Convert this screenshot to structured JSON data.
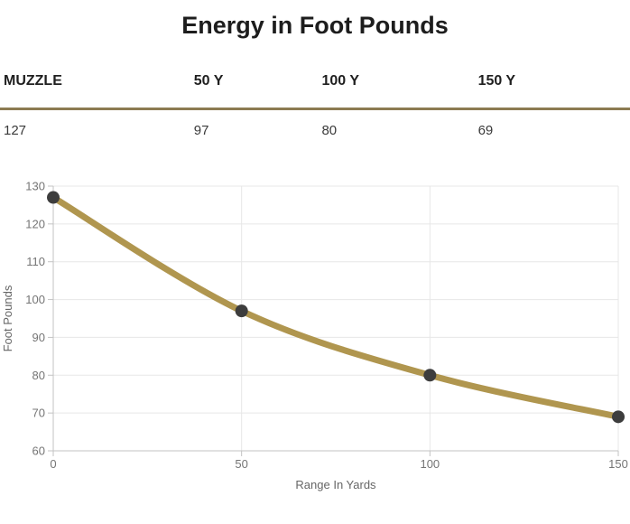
{
  "title": "Energy in Foot Pounds",
  "table": {
    "headers": [
      "MUZZLE",
      "50 Y",
      "100 Y",
      "150 Y"
    ],
    "values": [
      "127",
      "97",
      "80",
      "69"
    ]
  },
  "chart_data": {
    "type": "line",
    "x": [
      0,
      50,
      100,
      150
    ],
    "values": [
      127,
      97,
      80,
      69
    ],
    "title": "",
    "xlabel": "Range In Yards",
    "ylabel": "Foot Pounds",
    "xlim": [
      0,
      150
    ],
    "ylim": [
      60,
      130
    ],
    "xticks": [
      0,
      50,
      100,
      150
    ],
    "yticks": [
      60,
      70,
      80,
      90,
      100,
      110,
      120,
      130
    ],
    "grid": true,
    "legend": "none",
    "line_color": "#b0964f",
    "marker_color": "#3d3d3d"
  },
  "colors": {
    "divider": "#8c7b52",
    "grid_line": "#e7e7e7",
    "axis_line": "#c3c3c3",
    "tick_text": "#757575",
    "axis_title_text": "#666666"
  }
}
